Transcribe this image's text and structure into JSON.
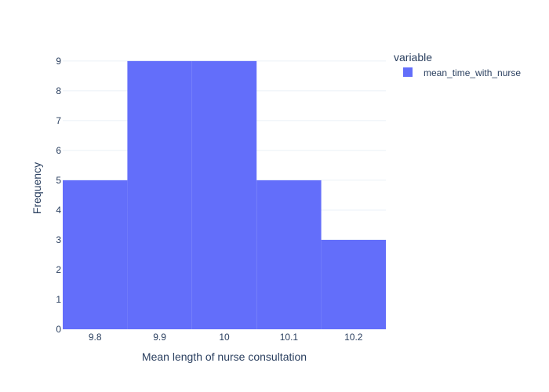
{
  "chart_data": {
    "type": "bar",
    "subtype": "histogram",
    "title": "",
    "xlabel": "Mean length of nurse consultation",
    "ylabel": "Frequency",
    "xlim": [
      9.75,
      10.25
    ],
    "ylim": [
      0,
      9.47
    ],
    "x_ticks": [
      "9.8",
      "9.9",
      "10",
      "10.1",
      "10.2"
    ],
    "x_tick_values": [
      9.8,
      9.9,
      10.0,
      10.1,
      10.2
    ],
    "y_ticks": [
      "0",
      "1",
      "2",
      "3",
      "4",
      "5",
      "6",
      "7",
      "8",
      "9"
    ],
    "y_tick_values": [
      0,
      1,
      2,
      3,
      4,
      5,
      6,
      7,
      8,
      9
    ],
    "bins": [
      {
        "start": 9.75,
        "end": 9.85,
        "count": 5
      },
      {
        "start": 9.85,
        "end": 9.95,
        "count": 9
      },
      {
        "start": 9.95,
        "end": 10.05,
        "count": 9
      },
      {
        "start": 10.05,
        "end": 10.15,
        "count": 5
      },
      {
        "start": 10.15,
        "end": 10.25,
        "count": 3
      }
    ],
    "series": [
      {
        "name": "mean_time_with_nurse",
        "color": "#636efa",
        "values": [
          5,
          9,
          9,
          5,
          3
        ]
      }
    ],
    "grid": true,
    "legend": {
      "title": "variable",
      "placement": "top-right",
      "entries": [
        "mean_time_with_nurse"
      ]
    }
  },
  "colors": {
    "bar": "#636efa",
    "text": "#2a3f5f",
    "grid": "#ebf0f8",
    "background": "#ffffff"
  }
}
